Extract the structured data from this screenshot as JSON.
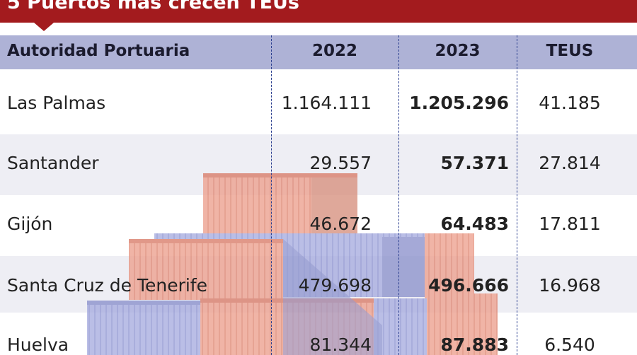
{
  "title": "5 Puertos más crecen TEUs",
  "chart_data": {
    "type": "table",
    "columns": [
      "Autoridad Portuaria",
      "2022",
      "2023",
      "TEUS"
    ],
    "rows": [
      {
        "port": "Las Palmas",
        "y2022": "1.164.111",
        "y2023": "1.205.296",
        "teus": "41.185"
      },
      {
        "port": "Santander",
        "y2022": "29.557",
        "y2023": "57.371",
        "teus": "27.814"
      },
      {
        "port": "Gijón",
        "y2022": "46.672",
        "y2023": "64.483",
        "teus": "17.811"
      },
      {
        "port": "Santa Cruz de Tenerife",
        "y2022": "479.698",
        "y2023": "496.666",
        "teus": "16.968"
      },
      {
        "port": "Huelva",
        "y2022": "81.344",
        "y2023": "87.883",
        "teus": "6.540"
      }
    ]
  },
  "colors": {
    "title_bg": "#a31b1e",
    "header_bg": "#aeb2d6",
    "row_alt_bg": "#eeeef4",
    "divider": "#2b3f8f",
    "container_red": "#e8836b",
    "container_blue": "#8f96d8"
  },
  "decoration": "shipping-containers-illustration"
}
